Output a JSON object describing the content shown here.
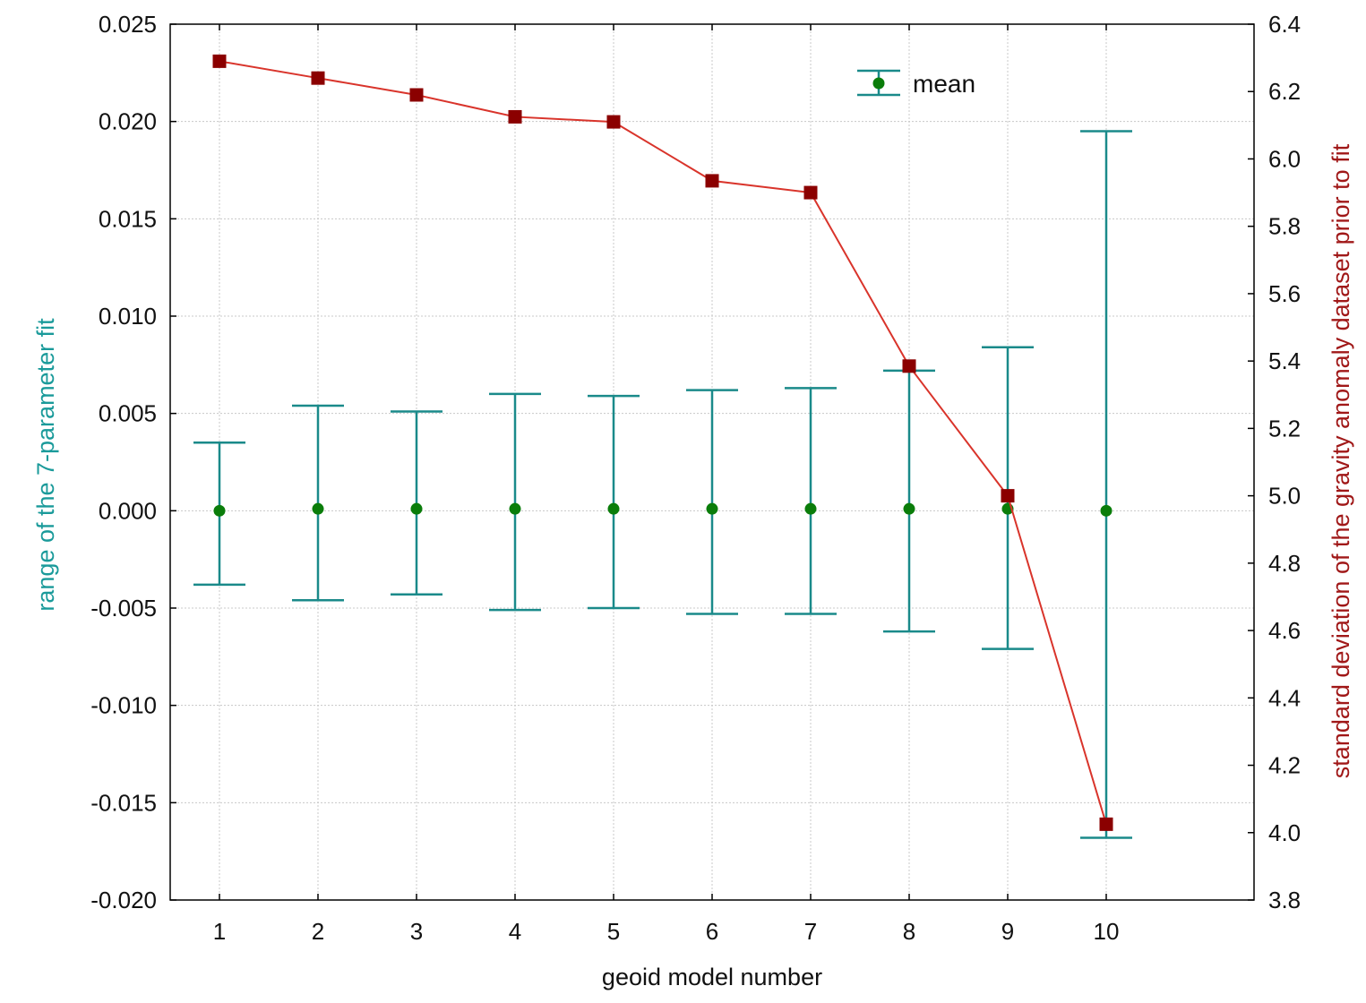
{
  "chart_data": {
    "type": "line",
    "x_label": "geoid model number",
    "y_left_label": "range of the 7-parameter fit",
    "y_right_label": "standard deviation of the gravity anomaly dataset prior to fit",
    "x_ticks": [
      "1",
      "2",
      "3",
      "4",
      "5",
      "6",
      "7",
      "8",
      "9",
      "10"
    ],
    "x_range": [
      0.5,
      11.5
    ],
    "y_left_range": [
      -0.02,
      0.025
    ],
    "y_left_ticks": [
      "-0.020",
      "-0.015",
      "-0.010",
      "-0.005",
      "0.000",
      "0.005",
      "0.010",
      "0.015",
      "0.020",
      "0.025"
    ],
    "y_right_range": [
      3.8,
      6.4
    ],
    "y_right_ticks": [
      "3.8",
      "4.0",
      "4.2",
      "4.4",
      "4.6",
      "4.8",
      "5.0",
      "5.2",
      "5.4",
      "5.6",
      "5.8",
      "6.0",
      "6.2",
      "6.4"
    ],
    "grid": true,
    "legend_position": "top-right",
    "series": [
      {
        "name": "mean",
        "axis": "left",
        "type": "errorbar",
        "color": "#1a8a8a",
        "marker_color": "#0a7d0a",
        "x": [
          1,
          2,
          3,
          4,
          5,
          6,
          7,
          8,
          9,
          10
        ],
        "mean": [
          0.0,
          0.0001,
          0.0001,
          0.0001,
          0.0001,
          0.0001,
          0.0001,
          0.0001,
          0.0001,
          0.0
        ],
        "upper": [
          0.0035,
          0.0054,
          0.0051,
          0.006,
          0.0059,
          0.0062,
          0.0063,
          0.0072,
          0.0084,
          0.0195
        ],
        "lower": [
          -0.0038,
          -0.0046,
          -0.0043,
          -0.0051,
          -0.005,
          -0.0053,
          -0.0053,
          -0.0062,
          -0.0071,
          -0.0168
        ]
      },
      {
        "axis": "right",
        "type": "line",
        "color": "#d9342b",
        "marker_color": "#8b0000",
        "x": [
          1,
          2,
          3,
          4,
          5,
          6,
          7,
          8,
          9,
          10
        ],
        "values": [
          6.29,
          6.24,
          6.19,
          6.125,
          6.11,
          5.935,
          5.9,
          5.385,
          5.0,
          4.025
        ]
      }
    ]
  }
}
